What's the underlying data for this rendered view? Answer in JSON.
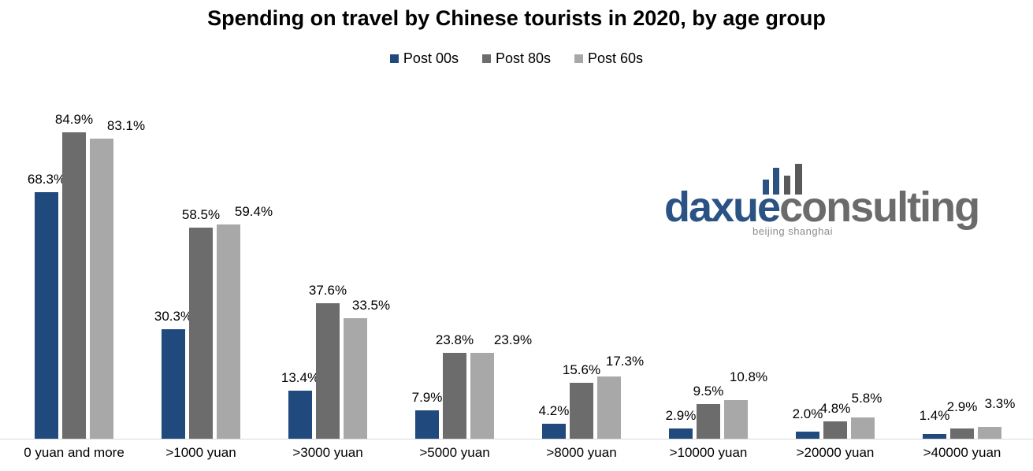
{
  "chart_data": {
    "type": "bar",
    "title": "Spending on travel by Chinese tourists in 2020, by age group",
    "categories": [
      "0 yuan and more",
      ">1000 yuan",
      ">3000 yuan",
      ">5000 yuan",
      ">8000 yuan",
      ">10000 yuan",
      ">20000 yuan",
      ">40000 yuan"
    ],
    "series": [
      {
        "name": "Post 00s",
        "color": "#204a7e",
        "values": [
          68.3,
          30.3,
          13.4,
          7.9,
          4.2,
          2.9,
          2.0,
          1.4
        ]
      },
      {
        "name": "Post 80s",
        "color": "#6c6c6c",
        "values": [
          84.9,
          58.5,
          37.6,
          23.8,
          15.6,
          9.5,
          4.8,
          2.9
        ]
      },
      {
        "name": "Post 60s",
        "color": "#a8a8a8",
        "values": [
          83.1,
          59.4,
          33.5,
          23.9,
          17.3,
          10.8,
          5.8,
          3.3
        ]
      }
    ],
    "value_suffix": "%",
    "value_decimals": 1,
    "ylim": [
      0,
      100
    ],
    "grid": false,
    "legend_position": "top",
    "data_labels": "outside-end",
    "axis_line_color": "#d9d9d9"
  },
  "logo": {
    "brand_primary": "daxue",
    "brand_secondary": "consulting",
    "tagline": "beijing shanghai",
    "primary_color": "#2a5384",
    "secondary_color": "#6b6b6b",
    "icon_bar_colors": [
      "#2a5384",
      "#2a5384",
      "#595959",
      "#595959"
    ]
  }
}
